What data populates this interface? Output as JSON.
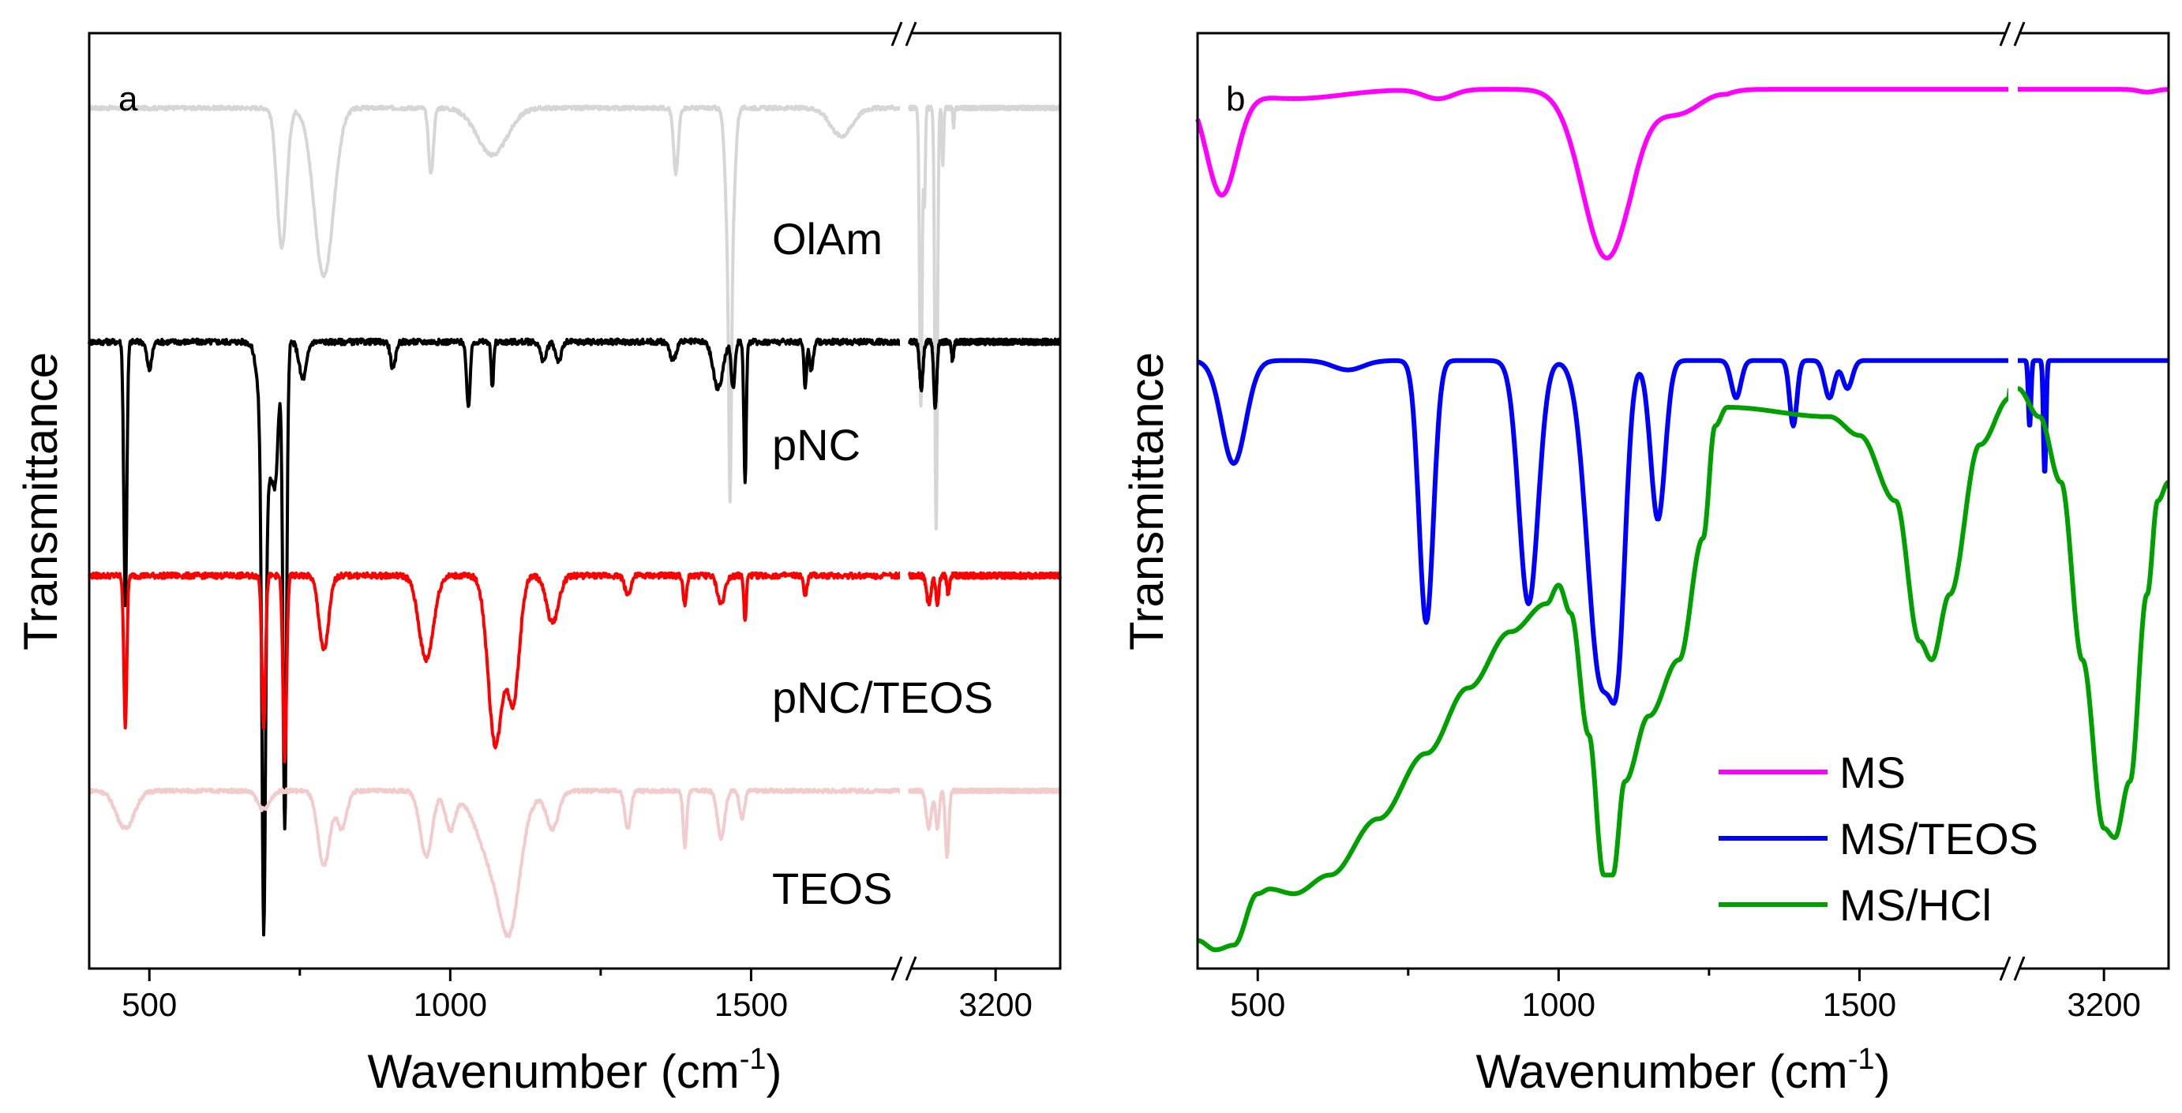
{
  "chart_data": [
    {
      "panel": "a",
      "type": "line",
      "xlabel": "Wavenumber (cm",
      "xlabel_sup": "-1",
      "xlabel_end": ")",
      "ylabel": "Transmittance",
      "x_segments": [
        {
          "range": [
            400,
            1750
          ],
          "ticks": [
            {
              "value": 500,
              "label": "500"
            },
            {
              "value": 1000,
              "label": "1000"
            },
            {
              "value": 1500,
              "label": "1500"
            }
          ],
          "minor": [
            750,
            1250
          ]
        },
        {
          "range": [
            2800,
            3500
          ],
          "ticks": [
            {
              "value": 3200,
              "label": "3200"
            }
          ],
          "minor": []
        }
      ],
      "axis_break": "between 1750 and 2800 cm-1",
      "series": [
        {
          "name": "OlAm",
          "color": "#d6d6d6",
          "baseline": 0.92,
          "scale": 0.6,
          "noise": 0.004,
          "peaks": [
            [
              720,
              0.15,
              8
            ],
            [
              790,
              0.18,
              16
            ],
            [
              968,
              0.07,
              4
            ],
            [
              1070,
              0.05,
              25
            ],
            [
              1375,
              0.07,
              4
            ],
            [
              1465,
              0.2,
              6
            ],
            [
              1465,
              0.22,
              2
            ],
            [
              1650,
              0.03,
              18
            ],
            [
              2853,
              0.32,
              6
            ],
            [
              2924,
              0.45,
              6
            ],
            [
              2870,
              0.1,
              4
            ],
            [
              2955,
              0.06,
              4
            ],
            [
              3005,
              0.02,
              3
            ]
          ]
        },
        {
          "name": "pNC",
          "color": "#000000",
          "baseline": 0.67,
          "scale": 0.6,
          "noise": 0.006,
          "peaks": [
            [
              460,
              0.28,
              2.5
            ],
            [
              500,
              0.03,
              4
            ],
            [
              690,
              0.5,
              3
            ],
            [
              695,
              0.15,
              10
            ],
            [
              710,
              0.1,
              5
            ],
            [
              725,
              0.52,
              3
            ],
            [
              755,
              0.04,
              6
            ],
            [
              905,
              0.03,
              4
            ],
            [
              1030,
              0.07,
              3
            ],
            [
              1070,
              0.05,
              2
            ],
            [
              1155,
              0.02,
              5
            ],
            [
              1180,
              0.02,
              5
            ],
            [
              1370,
              0.02,
              5
            ],
            [
              1445,
              0.05,
              8
            ],
            [
              1470,
              0.05,
              3
            ],
            [
              1490,
              0.15,
              2
            ],
            [
              1590,
              0.05,
              2
            ],
            [
              1600,
              0.03,
              3
            ],
            [
              2855,
              0.05,
              8
            ],
            [
              2920,
              0.07,
              7
            ],
            [
              3000,
              0.02,
              5
            ]
          ]
        },
        {
          "name": "pNC/TEOS",
          "color": "#ff0000",
          "baseline": 0.42,
          "scale": 0.6,
          "noise": 0.006,
          "peaks": [
            [
              460,
              0.16,
              2.5
            ],
            [
              690,
              0.16,
              3
            ],
            [
              725,
              0.2,
              3
            ],
            [
              790,
              0.08,
              8
            ],
            [
              960,
              0.09,
              12
            ],
            [
              1075,
              0.18,
              12
            ],
            [
              1105,
              0.13,
              10
            ],
            [
              1170,
              0.05,
              10
            ],
            [
              1295,
              0.02,
              5
            ],
            [
              1390,
              0.03,
              3
            ],
            [
              1450,
              0.03,
              6
            ],
            [
              1490,
              0.05,
              2
            ],
            [
              1590,
              0.02,
              3
            ],
            [
              2890,
              0.03,
              10
            ],
            [
              2930,
              0.03,
              7
            ],
            [
              2980,
              0.02,
              6
            ]
          ]
        },
        {
          "name": "TEOS",
          "color": "#f2cccc",
          "baseline": 0.19,
          "scale": 0.6,
          "noise": 0.004,
          "peaks": [
            [
              460,
              0.04,
              15
            ],
            [
              690,
              0.02,
              10
            ],
            [
              790,
              0.08,
              10
            ],
            [
              820,
              0.04,
              8
            ],
            [
              960,
              0.07,
              10
            ],
            [
              1000,
              0.04,
              8
            ],
            [
              1080,
              0.09,
              30
            ],
            [
              1100,
              0.08,
              15
            ],
            [
              1170,
              0.04,
              10
            ],
            [
              1295,
              0.04,
              5
            ],
            [
              1390,
              0.06,
              3
            ],
            [
              1450,
              0.05,
              6
            ],
            [
              1485,
              0.03,
              4
            ],
            [
              2890,
              0.04,
              12
            ],
            [
              2930,
              0.04,
              8
            ],
            [
              2975,
              0.07,
              8
            ]
          ]
        }
      ],
      "labels": [
        {
          "text": "OlAm",
          "series": "OlAm"
        },
        {
          "text": "pNC",
          "series": "pNC"
        },
        {
          "text": "pNC/TEOS",
          "series": "pNC/TEOS"
        },
        {
          "text": "TEOS",
          "series": "TEOS"
        }
      ]
    },
    {
      "panel": "b",
      "type": "line",
      "xlabel": "Wavenumber (cm",
      "xlabel_sup": "-1",
      "xlabel_end": ")",
      "ylabel": "Transmittance",
      "x_segments": [
        {
          "range": [
            400,
            1750
          ],
          "ticks": [
            {
              "value": 500,
              "label": "500"
            },
            {
              "value": 1000,
              "label": "1000"
            },
            {
              "value": 1500,
              "label": "1500"
            }
          ],
          "minor": [
            750,
            1250
          ]
        },
        {
          "range": [
            2800,
            3500
          ],
          "ticks": [
            {
              "value": 3200,
              "label": "3200"
            }
          ],
          "minor": []
        }
      ],
      "axis_break": "between 1750 and 2800 cm-1",
      "series": [
        {
          "name": "MS",
          "color": "#ff00ff",
          "baseline": 0.94,
          "scale": 1.0,
          "noise": 0,
          "peaks": [
            [
              440,
              0.11,
              25
            ],
            [
              560,
              0.01,
              80
            ],
            [
              800,
              0.01,
              25
            ],
            [
              1080,
              0.18,
              40
            ],
            [
              1200,
              0.04,
              40
            ],
            [
              1900,
              0.008,
              20
            ],
            [
              3400,
              0.003,
              40
            ]
          ],
          "ramp": [
            [
              1120,
              1280,
              0.015
            ]
          ]
        },
        {
          "name": "MS/TEOS",
          "color": "#0000ff",
          "baseline": 0.65,
          "scale": 1.0,
          "noise": 0,
          "peaks": [
            [
              460,
              0.11,
              20
            ],
            [
              650,
              0.01,
              25
            ],
            [
              780,
              0.28,
              12
            ],
            [
              950,
              0.26,
              16
            ],
            [
              1070,
              0.34,
              22
            ],
            [
              1100,
              0.2,
              12
            ],
            [
              1165,
              0.17,
              12
            ],
            [
              1295,
              0.04,
              8
            ],
            [
              1390,
              0.07,
              6
            ],
            [
              1450,
              0.04,
              8
            ],
            [
              1480,
              0.03,
              8
            ],
            [
              2855,
              0.07,
              6
            ],
            [
              2925,
              0.12,
              6
            ]
          ]
        },
        {
          "name": "MS/HCl",
          "color": "#00a000",
          "baseline": 0.6,
          "scale": 1.0,
          "noise": 0,
          "custom": "hcl"
        }
      ],
      "legend": {
        "position": "bottom-right",
        "entries": [
          "MS",
          "MS/TEOS",
          "MS/HCl"
        ]
      }
    }
  ],
  "panels": {
    "a": {
      "label": "a"
    },
    "b": {
      "label": "b"
    }
  },
  "colors": {
    "axis": "#000000",
    "background": "#ffffff"
  }
}
